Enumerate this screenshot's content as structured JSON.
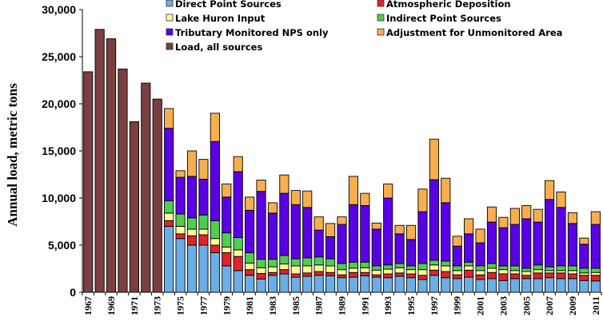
{
  "chart_data": {
    "type": "bar",
    "stacked": true,
    "title": "",
    "xlabel": "",
    "ylabel": "Annual load, metric tons",
    "ylim": [
      0,
      30000
    ],
    "yticks": [
      0,
      5000,
      10000,
      15000,
      20000,
      25000,
      30000
    ],
    "ytick_labels": [
      "0",
      "5,000",
      "10,000",
      "15,000",
      "20,000",
      "25,000",
      "30,000"
    ],
    "grid": false,
    "legend_placement": "top",
    "categories": [
      "1967",
      "1968",
      "1969",
      "1970",
      "1971",
      "1972",
      "1973",
      "1974",
      "1975",
      "1976",
      "1977",
      "1978",
      "1979",
      "1980",
      "1981",
      "1982",
      "1983",
      "1984",
      "1985",
      "1986",
      "1987",
      "1988",
      "1989",
      "1990",
      "1991",
      "1992",
      "1993",
      "1994",
      "1995",
      "1996",
      "1997",
      "1998",
      "1999",
      "2000",
      "2001",
      "2002",
      "2003",
      "2004",
      "2005",
      "2006",
      "2007",
      "2008",
      "2009",
      "2010",
      "2011"
    ],
    "xtick_labels": [
      "1967",
      "1969",
      "1971",
      "1973",
      "1975",
      "1977",
      "1979",
      "1981",
      "1983",
      "1985",
      "1987",
      "1989",
      "1991",
      "1993",
      "1995",
      "1997",
      "1999",
      "2001",
      "2003",
      "2005",
      "2007",
      "2009",
      "2011"
    ],
    "series": [
      {
        "name": "Direct Point Sources",
        "color": "#6aaee8",
        "values": [
          null,
          null,
          null,
          null,
          null,
          null,
          null,
          7000,
          5700,
          5000,
          5000,
          4200,
          2800,
          2300,
          1800,
          1400,
          1800,
          1950,
          1600,
          1700,
          1800,
          1750,
          1550,
          1600,
          1750,
          1600,
          1550,
          1700,
          1550,
          1350,
          1800,
          1550,
          1450,
          1600,
          1350,
          1450,
          1250,
          1450,
          1450,
          1450,
          1550,
          1450,
          1450,
          1250,
          1200
        ]
      },
      {
        "name": "Atmospheric Deposition",
        "color": "#e0242a",
        "values": [
          null,
          null,
          null,
          null,
          null,
          null,
          null,
          600,
          500,
          1000,
          1100,
          800,
          1400,
          1500,
          600,
          600,
          300,
          450,
          350,
          350,
          400,
          350,
          300,
          500,
          350,
          250,
          400,
          350,
          400,
          450,
          550,
          650,
          400,
          750,
          500,
          650,
          700,
          500,
          350,
          600,
          500,
          600,
          500,
          550,
          600
        ]
      },
      {
        "name": "Lake Huron Input",
        "color": "#ffff99",
        "values": [
          null,
          null,
          null,
          null,
          null,
          null,
          null,
          800,
          800,
          700,
          600,
          700,
          600,
          700,
          700,
          600,
          600,
          600,
          850,
          750,
          700,
          700,
          550,
          450,
          500,
          500,
          500,
          550,
          450,
          600,
          550,
          600,
          450,
          450,
          450,
          450,
          450,
          350,
          400,
          350,
          250,
          250,
          350,
          250,
          300
        ]
      },
      {
        "name": "Indirect Point Sources",
        "color": "#4ecf4e",
        "values": [
          null,
          null,
          null,
          null,
          null,
          null,
          null,
          1300,
          1300,
          1200,
          1500,
          1900,
          1500,
          1300,
          1100,
          900,
          800,
          900,
          750,
          850,
          850,
          750,
          650,
          650,
          600,
          450,
          450,
          450,
          400,
          650,
          500,
          500,
          500,
          400,
          500,
          500,
          400,
          500,
          350,
          500,
          400,
          500,
          500,
          500,
          450
        ]
      },
      {
        "name": "Tributary Monitored NPS only",
        "color": "#5a00e6",
        "values": [
          null,
          null,
          null,
          null,
          null,
          null,
          null,
          7700,
          3900,
          4400,
          3800,
          8400,
          3800,
          7000,
          4500,
          7200,
          4900,
          6600,
          5750,
          5350,
          2850,
          2350,
          4150,
          6100,
          6000,
          3900,
          7100,
          3150,
          2800,
          5500,
          8550,
          6200,
          2100,
          3000,
          2450,
          4400,
          4050,
          4400,
          5250,
          4550,
          7150,
          6200,
          4500,
          2550,
          4650
        ]
      },
      {
        "name": "Adjustment for Unmonitored Area",
        "color": "#f8ae4e",
        "values": [
          null,
          null,
          null,
          null,
          null,
          null,
          null,
          2100,
          700,
          2700,
          2100,
          3000,
          1400,
          1600,
          1400,
          1200,
          1100,
          1950,
          1500,
          1750,
          1400,
          1400,
          800,
          3000,
          1300,
          650,
          1500,
          900,
          1500,
          2400,
          4300,
          2600,
          1050,
          1600,
          1450,
          1600,
          1100,
          1700,
          1400,
          1350,
          2000,
          1650,
          1150,
          650,
          1350
        ]
      },
      {
        "name": "Load, all sources",
        "color": "#7b3f3f",
        "values": [
          23400,
          27900,
          26900,
          23700,
          18100,
          22200,
          20500,
          null,
          null,
          null,
          null,
          null,
          null,
          null,
          null,
          null,
          null,
          null,
          null,
          null,
          null,
          null,
          null,
          null,
          null,
          null,
          null,
          null,
          null,
          null,
          null,
          null,
          null,
          null,
          null,
          null,
          null,
          null,
          null,
          null,
          null,
          null,
          null,
          null,
          null
        ]
      }
    ],
    "legend_order": [
      0,
      1,
      2,
      3,
      4,
      5,
      6
    ]
  }
}
